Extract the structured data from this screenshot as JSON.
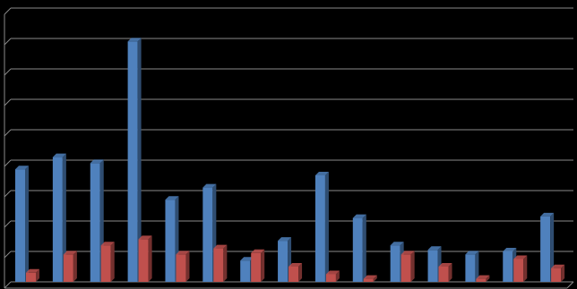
{
  "chart_data": {
    "type": "bar",
    "categories": [
      null,
      null,
      null,
      null,
      null,
      null,
      null,
      null,
      null,
      null,
      null,
      null,
      null,
      null,
      null
    ],
    "series": [
      {
        "color": "#4f81bd",
        "values": [
          3.7,
          4.1,
          3.9,
          7.9,
          2.7,
          3.1,
          0.7,
          1.35,
          3.5,
          2.1,
          1.2,
          1.05,
          0.9,
          1.0,
          2.15
        ]
      },
      {
        "color": "#c0504d",
        "values": [
          0.3,
          0.9,
          1.2,
          1.4,
          0.9,
          1.1,
          0.95,
          0.5,
          0.25,
          0.1,
          0.9,
          0.5,
          0.1,
          0.75,
          0.45
        ]
      }
    ],
    "ylim": [
      0,
      9
    ],
    "yticks": [
      0,
      1,
      2,
      3,
      4,
      5,
      6,
      7,
      8,
      9
    ],
    "grid": true
  }
}
